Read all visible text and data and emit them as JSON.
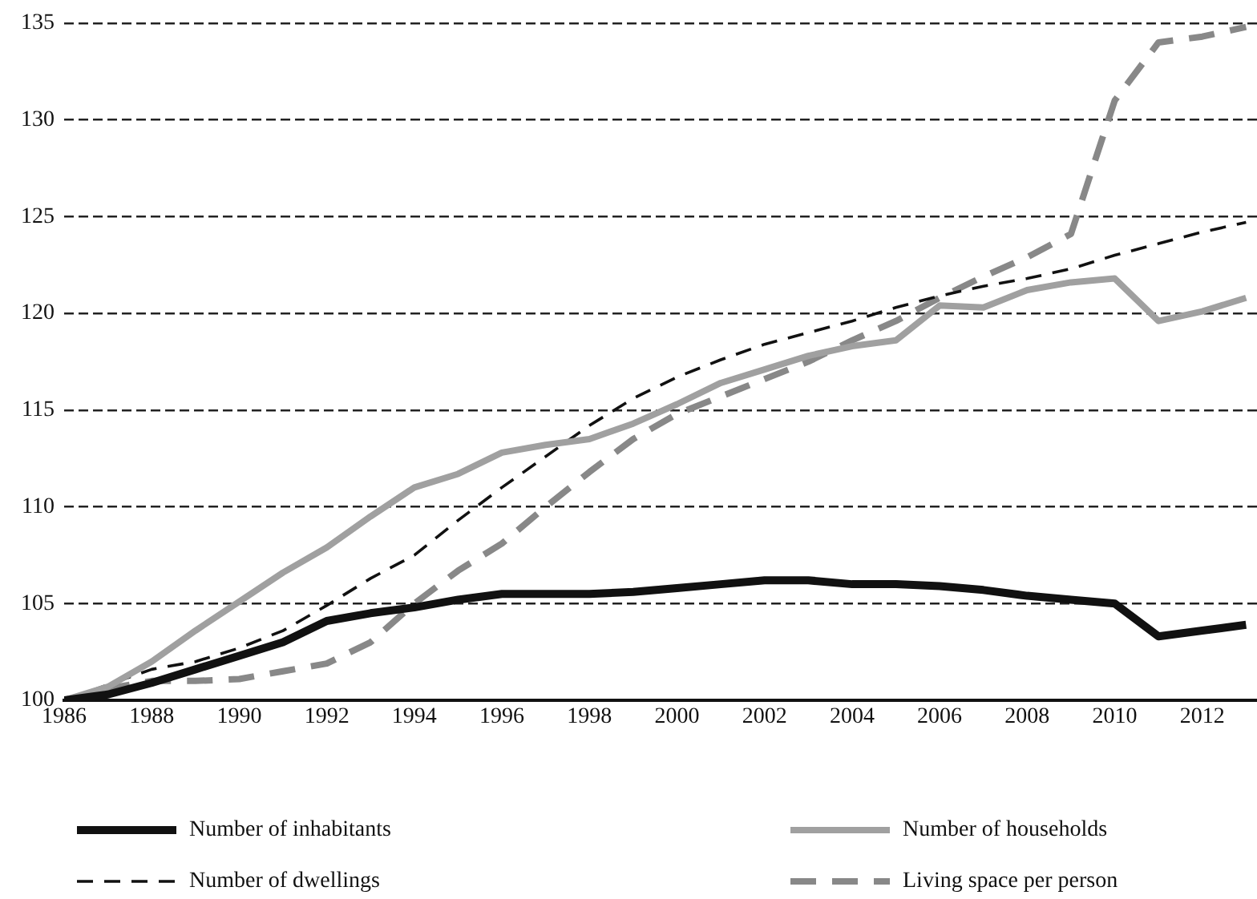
{
  "chart_data": {
    "type": "line",
    "x": [
      1986,
      1987,
      1988,
      1989,
      1990,
      1991,
      1992,
      1993,
      1994,
      1995,
      1996,
      1997,
      1998,
      1999,
      2000,
      2001,
      2002,
      2003,
      2004,
      2005,
      2006,
      2007,
      2008,
      2009,
      2010,
      2011,
      2012,
      2013
    ],
    "xlim": [
      1986,
      2013.25
    ],
    "xticks": [
      1986,
      1988,
      1990,
      1992,
      1994,
      1996,
      1998,
      2000,
      2002,
      2004,
      2006,
      2008,
      2010,
      2012
    ],
    "ylim": [
      100,
      135
    ],
    "yticks": [
      100,
      105,
      110,
      115,
      120,
      125,
      130,
      135
    ],
    "grid": "y",
    "legend": "bottom",
    "marker": "none",
    "series": [
      {
        "name": "Number of inhabitants",
        "color": "#111111",
        "line_style": "solid",
        "values": [
          100,
          100.3,
          100.9,
          101.6,
          102.3,
          103.0,
          104.1,
          104.5,
          104.8,
          105.2,
          105.5,
          105.5,
          105.5,
          105.6,
          105.8,
          106.0,
          106.2,
          106.2,
          106.0,
          106.0,
          105.9,
          105.7,
          105.4,
          105.2,
          105.0,
          103.3,
          103.6,
          103.9
        ]
      },
      {
        "name": "Number of households",
        "color": "#a0a0a0",
        "line_style": "solid",
        "values": [
          100,
          100.7,
          102.0,
          103.6,
          105.1,
          106.6,
          107.9,
          109.5,
          111.0,
          111.7,
          112.8,
          113.2,
          113.5,
          114.3,
          115.3,
          116.4,
          117.1,
          117.8,
          118.3,
          118.6,
          120.4,
          120.3,
          121.2,
          121.6,
          121.8,
          119.6,
          120.1,
          120.8
        ]
      },
      {
        "name": "Number of dwellings",
        "color": "#111111",
        "line_style": "dashed",
        "values": [
          100,
          100.8,
          101.6,
          102.0,
          102.7,
          103.6,
          104.9,
          106.3,
          107.5,
          109.3,
          111.0,
          112.6,
          114.2,
          115.6,
          116.7,
          117.6,
          118.4,
          119.0,
          119.6,
          120.3,
          120.9,
          121.4,
          121.8,
          122.3,
          123.0,
          123.6,
          124.2,
          124.7
        ]
      },
      {
        "name": "Living space per person",
        "color": "#888888",
        "line_style": "dashed",
        "values": [
          100,
          100.6,
          101.0,
          101.0,
          101.1,
          101.5,
          101.9,
          103.0,
          105.0,
          106.7,
          108.1,
          110.0,
          111.8,
          113.5,
          114.8,
          115.7,
          116.6,
          117.5,
          118.6,
          119.6,
          120.8,
          121.9,
          122.9,
          124.1,
          131.0,
          134.0,
          134.3,
          134.8
        ]
      }
    ]
  }
}
